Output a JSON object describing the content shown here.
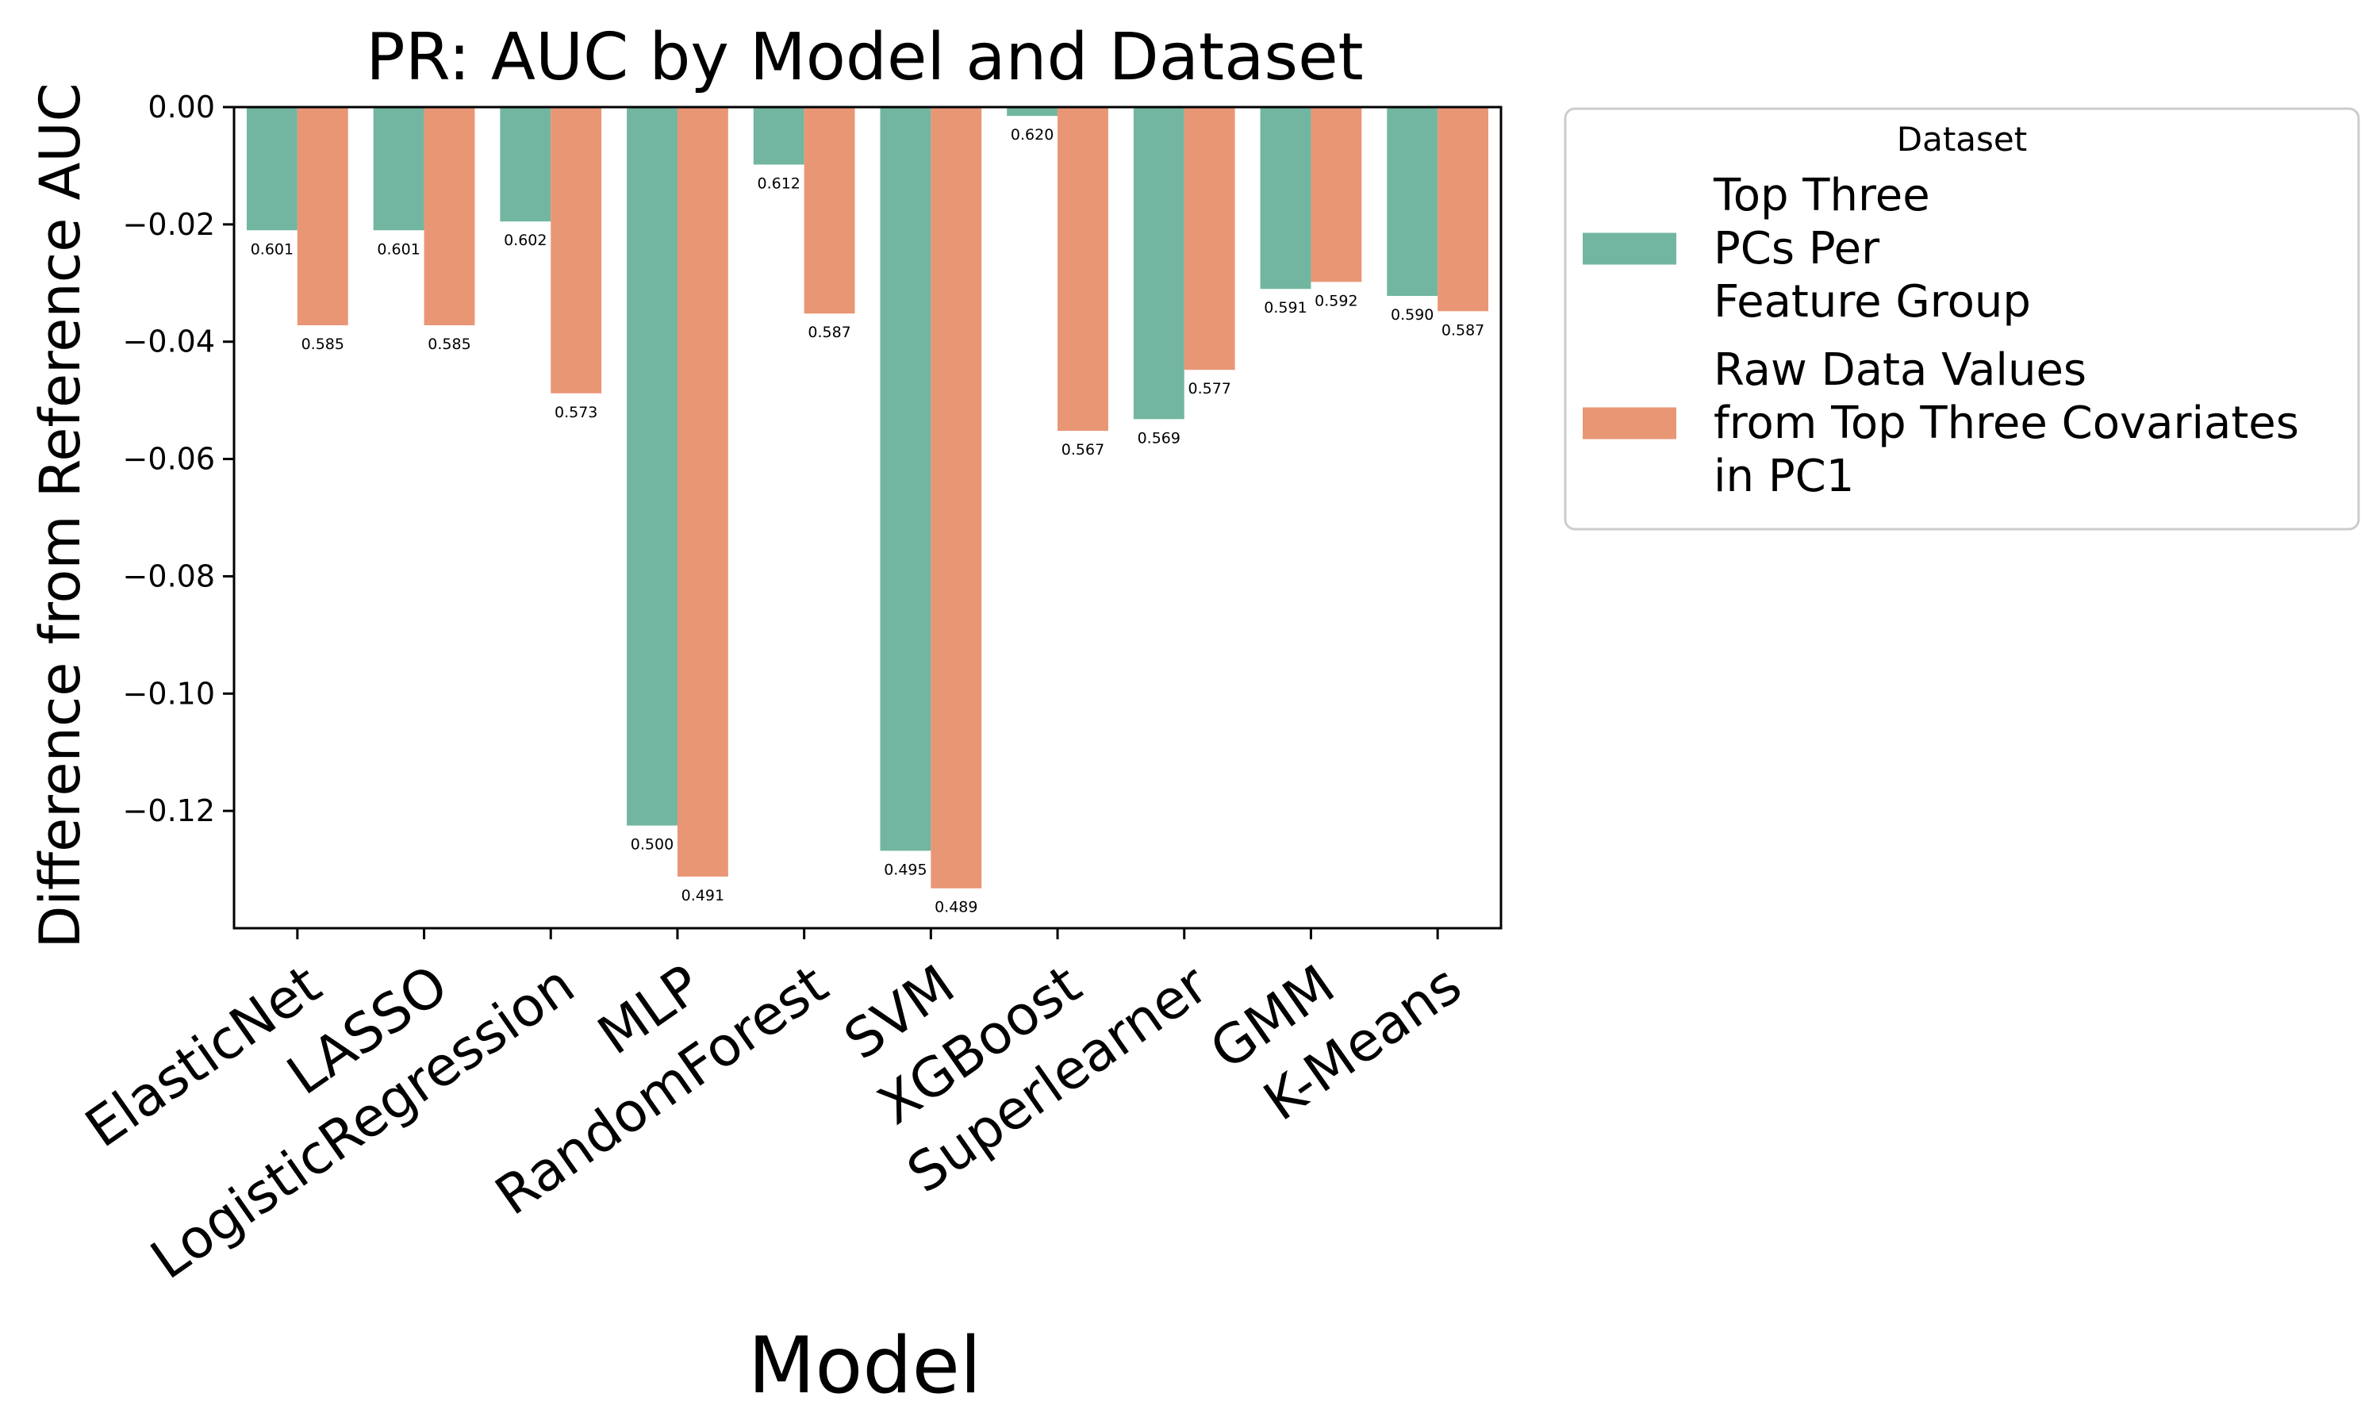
{
  "chart_data": {
    "type": "bar",
    "title": "PR: AUC by Model and Dataset",
    "xlabel": "Model",
    "ylabel": "Difference from Reference AUC",
    "categories": [
      "ElasticNet",
      "LASSO",
      "LogisticRegression",
      "MLP",
      "RandomForest",
      "SVM",
      "XGBoost",
      "Superlearner",
      "GMM",
      "K-Means"
    ],
    "ylim": [
      -0.14,
      0.0
    ],
    "yticks": [
      0.0,
      -0.02,
      -0.04,
      -0.06,
      -0.08,
      -0.1,
      -0.12
    ],
    "ytick_labels": [
      "0.00",
      "−0.02",
      "−0.04",
      "−0.06",
      "−0.08",
      "−0.10",
      "−0.12"
    ],
    "reference_line": 0.0,
    "grid": false,
    "legend": {
      "title": "Dataset",
      "position": "outside-right"
    },
    "series": [
      {
        "name": "Top Three\nPCs Per\nFeature Group",
        "color": "#72b6a1",
        "values": [
          -0.021,
          -0.021,
          -0.0195,
          -0.1225,
          -0.0098,
          -0.1268,
          -0.0015,
          -0.0532,
          -0.031,
          -0.0322
        ],
        "labels": [
          "0.601",
          "0.601",
          "0.602",
          "0.500",
          "0.612",
          "0.495",
          "0.620",
          "0.569",
          "0.591",
          "0.590"
        ]
      },
      {
        "name": "Raw Data Values\nfrom Top Three Covariates\nin PC1",
        "color": "#e99675",
        "values": [
          -0.0372,
          -0.0372,
          -0.0488,
          -0.1312,
          -0.0352,
          -0.1332,
          -0.0552,
          -0.0448,
          -0.0298,
          -0.0348
        ],
        "labels": [
          "0.585",
          "0.585",
          "0.573",
          "0.491",
          "0.587",
          "0.489",
          "0.567",
          "0.577",
          "0.592",
          "0.587"
        ]
      }
    ]
  }
}
